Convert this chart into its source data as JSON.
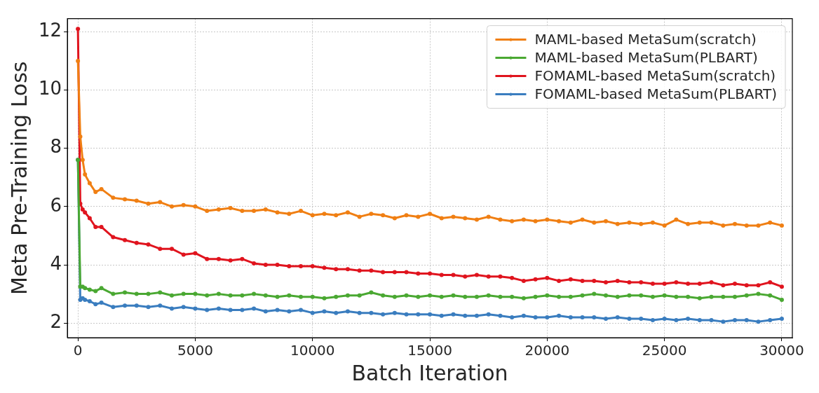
{
  "chart_data": {
    "type": "line",
    "xlabel": "Batch Iteration",
    "ylabel": "Meta Pre-Training Loss",
    "x": [
      0,
      100,
      200,
      300,
      500,
      750,
      1000,
      1500,
      2000,
      2500,
      3000,
      3500,
      4000,
      4500,
      5000,
      5500,
      6000,
      6500,
      7000,
      7500,
      8000,
      8500,
      9000,
      9500,
      10000,
      10500,
      11000,
      11500,
      12000,
      12500,
      13000,
      13500,
      14000,
      14500,
      15000,
      15500,
      16000,
      16500,
      17000,
      17500,
      18000,
      18500,
      19000,
      19500,
      20000,
      20500,
      21000,
      21500,
      22000,
      22500,
      23000,
      23500,
      24000,
      24500,
      25000,
      25500,
      26000,
      26500,
      27000,
      27500,
      28000,
      28500,
      29000,
      29500,
      30000
    ],
    "series": [
      {
        "name": "MAML-based MetaSum(scratch)",
        "color": "#f07f13",
        "values": [
          11.0,
          8.4,
          7.6,
          7.1,
          6.8,
          6.5,
          6.6,
          6.3,
          6.25,
          6.2,
          6.1,
          6.15,
          6.0,
          6.05,
          6.0,
          5.85,
          5.9,
          5.95,
          5.85,
          5.85,
          5.9,
          5.8,
          5.75,
          5.85,
          5.7,
          5.75,
          5.7,
          5.8,
          5.65,
          5.75,
          5.7,
          5.6,
          5.7,
          5.65,
          5.75,
          5.6,
          5.65,
          5.6,
          5.55,
          5.65,
          5.55,
          5.5,
          5.55,
          5.5,
          5.55,
          5.5,
          5.45,
          5.55,
          5.45,
          5.5,
          5.4,
          5.45,
          5.4,
          5.45,
          5.35,
          5.55,
          5.4,
          5.45,
          5.45,
          5.35,
          5.4,
          5.35,
          5.35,
          5.45,
          5.35
        ]
      },
      {
        "name": "MAML-based MetaSum(PLBART)",
        "color": "#4aa832",
        "values": [
          7.6,
          3.25,
          3.25,
          3.2,
          3.15,
          3.1,
          3.2,
          3.0,
          3.05,
          3.0,
          3.0,
          3.05,
          2.95,
          3.0,
          3.0,
          2.95,
          3.0,
          2.95,
          2.95,
          3.0,
          2.95,
          2.9,
          2.95,
          2.9,
          2.9,
          2.85,
          2.9,
          2.95,
          2.95,
          3.05,
          2.95,
          2.9,
          2.95,
          2.9,
          2.95,
          2.9,
          2.95,
          2.9,
          2.9,
          2.95,
          2.9,
          2.9,
          2.85,
          2.9,
          2.95,
          2.9,
          2.9,
          2.95,
          3.0,
          2.95,
          2.9,
          2.95,
          2.95,
          2.9,
          2.95,
          2.9,
          2.9,
          2.85,
          2.9,
          2.9,
          2.9,
          2.95,
          3.0,
          2.95,
          2.8
        ]
      },
      {
        "name": "FOMAML-based MetaSum(scratch)",
        "color": "#e0141e",
        "values": [
          12.1,
          6.1,
          5.9,
          5.8,
          5.6,
          5.3,
          5.3,
          4.95,
          4.85,
          4.75,
          4.7,
          4.55,
          4.55,
          4.35,
          4.4,
          4.2,
          4.2,
          4.15,
          4.2,
          4.05,
          4.0,
          4.0,
          3.95,
          3.95,
          3.95,
          3.9,
          3.85,
          3.85,
          3.8,
          3.8,
          3.75,
          3.75,
          3.75,
          3.7,
          3.7,
          3.65,
          3.65,
          3.6,
          3.65,
          3.6,
          3.6,
          3.55,
          3.45,
          3.5,
          3.55,
          3.45,
          3.5,
          3.45,
          3.45,
          3.4,
          3.45,
          3.4,
          3.4,
          3.35,
          3.35,
          3.4,
          3.35,
          3.35,
          3.4,
          3.3,
          3.35,
          3.3,
          3.3,
          3.4,
          3.25
        ]
      },
      {
        "name": "FOMAML-based MetaSum(PLBART)",
        "color": "#3a7dbf",
        "values": [
          7.6,
          2.8,
          2.85,
          2.8,
          2.75,
          2.65,
          2.7,
          2.55,
          2.6,
          2.6,
          2.55,
          2.6,
          2.5,
          2.55,
          2.5,
          2.45,
          2.5,
          2.45,
          2.45,
          2.5,
          2.4,
          2.45,
          2.4,
          2.45,
          2.35,
          2.4,
          2.35,
          2.4,
          2.35,
          2.35,
          2.3,
          2.35,
          2.3,
          2.3,
          2.3,
          2.25,
          2.3,
          2.25,
          2.25,
          2.3,
          2.25,
          2.2,
          2.25,
          2.2,
          2.2,
          2.25,
          2.2,
          2.2,
          2.2,
          2.15,
          2.2,
          2.15,
          2.15,
          2.1,
          2.15,
          2.1,
          2.15,
          2.1,
          2.1,
          2.05,
          2.1,
          2.1,
          2.05,
          2.1,
          2.15
        ]
      }
    ],
    "xlim": [
      -450,
      30450
    ],
    "xticks": [
      0,
      5000,
      10000,
      15000,
      20000,
      25000,
      30000
    ],
    "ylim": [
      1.5,
      12.45
    ],
    "yticks": [
      2,
      4,
      6,
      8,
      10,
      12
    ],
    "grid": true,
    "legend": "top right",
    "marker": "circle",
    "line_style": "solid"
  }
}
